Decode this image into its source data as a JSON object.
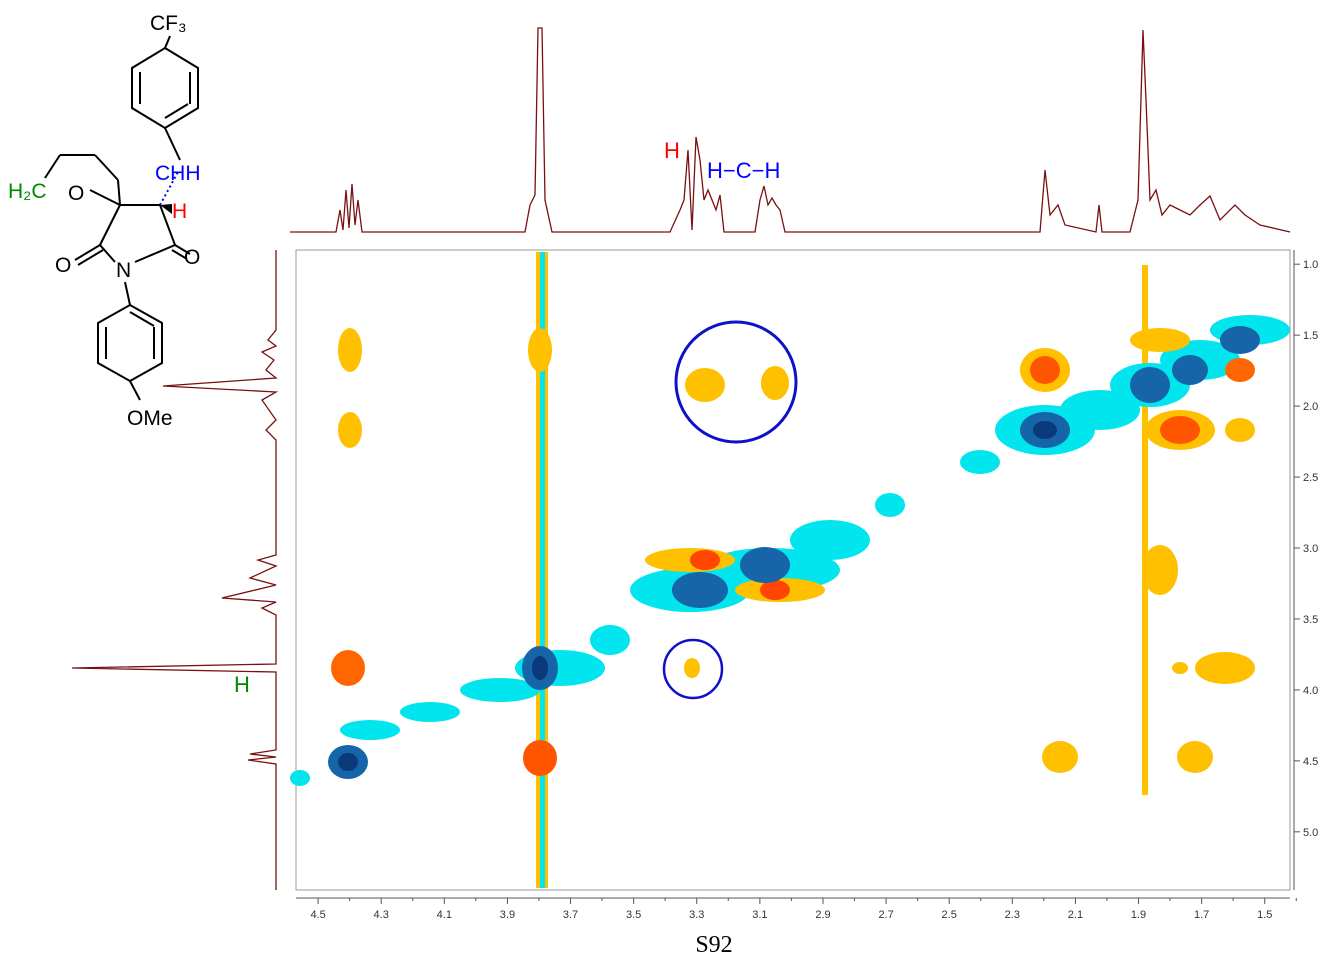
{
  "figure": {
    "structure": {
      "cf3": "CF₃",
      "chh": "CHH",
      "h_red": "H",
      "h2c": "H₂C",
      "ring_o": "O",
      "n": "N",
      "o_left": "O",
      "o_right": "O",
      "ome": "OMe"
    },
    "annotations": {
      "h_red": "H",
      "hch": "H−C−H",
      "h_green": "H"
    },
    "x_axis": {
      "lim": [
        4.57,
        1.42
      ],
      "ticks": [
        4.5,
        4.3,
        4.1,
        3.9,
        3.7,
        3.5,
        3.3,
        3.1,
        2.9,
        2.7,
        2.5,
        2.3,
        2.1,
        1.9,
        1.7,
        1.5
      ]
    },
    "y_axis": {
      "lim": [
        0.9,
        5.41
      ],
      "ticks": [
        {
          "value": 1.0,
          "label": "1.0"
        },
        1.5,
        {
          "value": 2.0,
          "label": "2.0"
        },
        2.5,
        {
          "value": 3.0,
          "label": "3.0"
        },
        3.5,
        {
          "value": 4.0,
          "label": "4.0"
        },
        4.5,
        {
          "value": 5.0,
          "label": "5.0"
        }
      ]
    },
    "page": "S92"
  }
}
